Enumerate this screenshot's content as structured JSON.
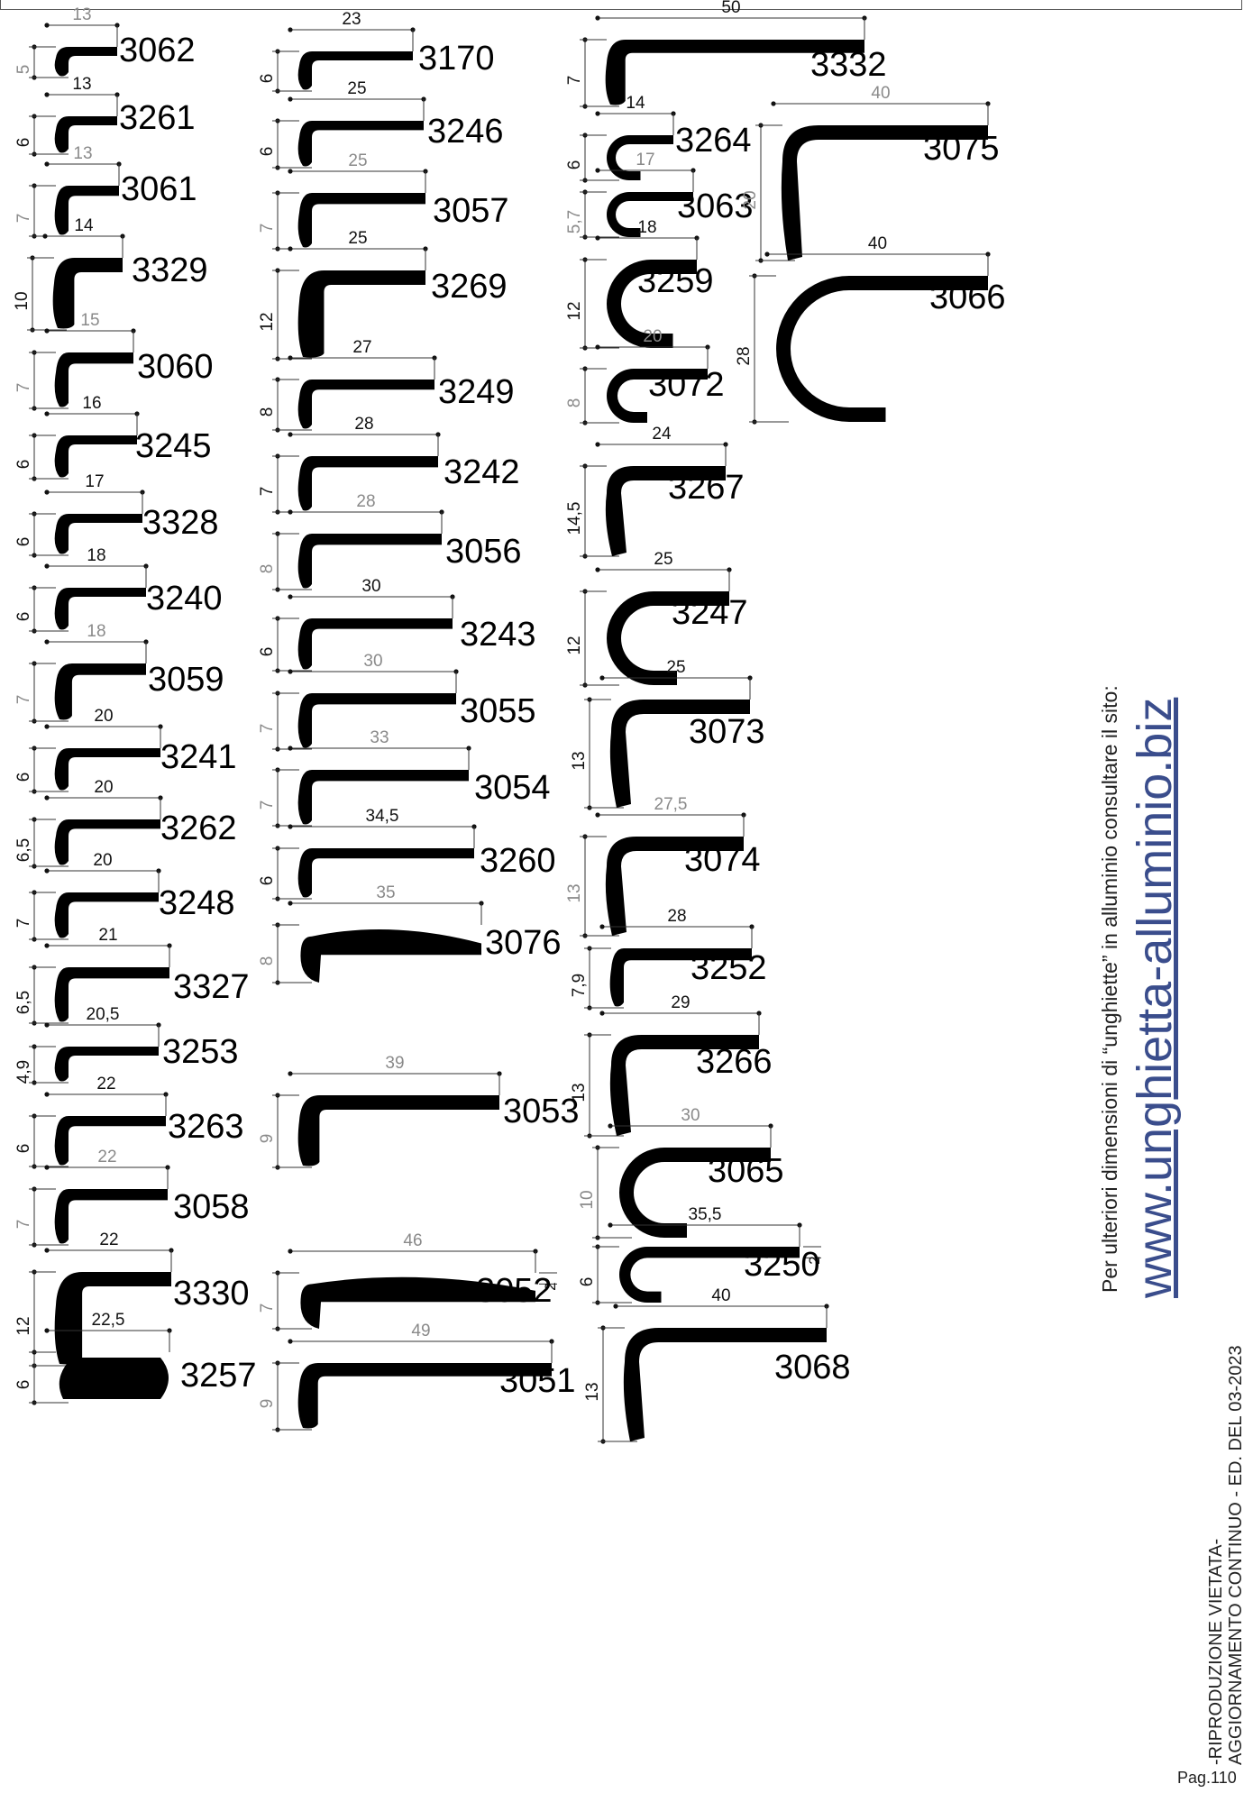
{
  "profiles": [
    {
      "code": "3062",
      "width": "13",
      "height": "5",
      "grey": true
    },
    {
      "code": "3261",
      "width": "13",
      "height": "6",
      "grey": false
    },
    {
      "code": "3061",
      "width": "13",
      "height": "7",
      "grey": true
    },
    {
      "code": "3329",
      "width": "14",
      "height": "10",
      "grey": false
    },
    {
      "code": "3060",
      "width": "15",
      "height": "7",
      "grey": true
    },
    {
      "code": "3245",
      "width": "16",
      "height": "6",
      "grey": false
    },
    {
      "code": "3328",
      "width": "17",
      "height": "6",
      "grey": false
    },
    {
      "code": "3240",
      "width": "18",
      "height": "6",
      "grey": false
    },
    {
      "code": "3059",
      "width": "18",
      "height": "7",
      "grey": true
    },
    {
      "code": "3241",
      "width": "20",
      "height": "6",
      "grey": false
    },
    {
      "code": "3262",
      "width": "20",
      "height": "6,5",
      "grey": false
    },
    {
      "code": "3248",
      "width": "20",
      "height": "7",
      "grey": false
    },
    {
      "code": "3327",
      "width": "21",
      "height": "6,5",
      "grey": false
    },
    {
      "code": "3253",
      "width": "20,5",
      "height": "4,9",
      "grey": false
    },
    {
      "code": "3263",
      "width": "22",
      "height": "6",
      "grey": false
    },
    {
      "code": "3058",
      "width": "22",
      "height": "7",
      "grey": true
    },
    {
      "code": "3330",
      "width": "22",
      "height": "12",
      "grey": false
    },
    {
      "code": "3257",
      "width": "22,5",
      "height": "6",
      "grey": false
    },
    {
      "code": "3170",
      "width": "23",
      "height": "6",
      "grey": false
    },
    {
      "code": "3246",
      "width": "25",
      "height": "6",
      "grey": false
    },
    {
      "code": "3057",
      "width": "25",
      "height": "7",
      "grey": true
    },
    {
      "code": "3269",
      "width": "25",
      "height": "12",
      "grey": false
    },
    {
      "code": "3249",
      "width": "27",
      "height": "8",
      "grey": false
    },
    {
      "code": "3242",
      "width": "28",
      "height": "7",
      "grey": false
    },
    {
      "code": "3056",
      "width": "28",
      "height": "8",
      "grey": true
    },
    {
      "code": "3243",
      "width": "30",
      "height": "6",
      "grey": false
    },
    {
      "code": "3055",
      "width": "30",
      "height": "7",
      "grey": true
    },
    {
      "code": "3054",
      "width": "33",
      "height": "7",
      "grey": true
    },
    {
      "code": "3260",
      "width": "34,5",
      "height": "6",
      "grey": false
    },
    {
      "code": "3076",
      "width": "35",
      "height": "8",
      "grey": true
    },
    {
      "code": "3053",
      "width": "39",
      "height": "9",
      "grey": true
    },
    {
      "code": "3052",
      "width": "46",
      "height": "7",
      "grey": true,
      "lip": "2"
    },
    {
      "code": "3051",
      "width": "49",
      "height": "9",
      "grey": true
    },
    {
      "code": "3332",
      "width": "50",
      "height": "7",
      "grey": false
    },
    {
      "code": "3264",
      "width": "14",
      "height": "6",
      "grey": false
    },
    {
      "code": "3063",
      "width": "17",
      "height": "5,7",
      "grey": true
    },
    {
      "code": "3259",
      "width": "18",
      "height": "12",
      "grey": false
    },
    {
      "code": "3072",
      "width": "20",
      "height": "8",
      "grey": true
    },
    {
      "code": "3267",
      "width": "24",
      "height": "14,5",
      "grey": false
    },
    {
      "code": "3247",
      "width": "25",
      "height": "12",
      "grey": false
    },
    {
      "code": "3073",
      "width": "25",
      "height": "13",
      "grey": false
    },
    {
      "code": "3074",
      "width": "27,5",
      "height": "13",
      "grey": true
    },
    {
      "code": "3252",
      "width": "28",
      "height": "7,9",
      "grey": false
    },
    {
      "code": "3266",
      "width": "29",
      "height": "13",
      "grey": false
    },
    {
      "code": "3065",
      "width": "30",
      "height": "10",
      "grey": true
    },
    {
      "code": "3250",
      "width": "35,5",
      "height": "6",
      "grey": false,
      "lip": "2"
    },
    {
      "code": "3068",
      "width": "40",
      "height": "13",
      "grey": false
    },
    {
      "code": "3075",
      "width": "40",
      "height": "20",
      "grey": true
    },
    {
      "code": "3066",
      "width": "40",
      "height": "28",
      "grey": false
    }
  ],
  "side_note": "Per ulteriori dimensioni di “unghiette” in alluminio consultare il sito:",
  "side_url": "www.unghietta-alluminio.biz",
  "footer_line1": "-RIPRODUZIONE VIETATA-",
  "footer_line2": "AGGIORNAMENTO CONTINUO - ED. DEL 03-2023",
  "page_number": "Pag.110"
}
